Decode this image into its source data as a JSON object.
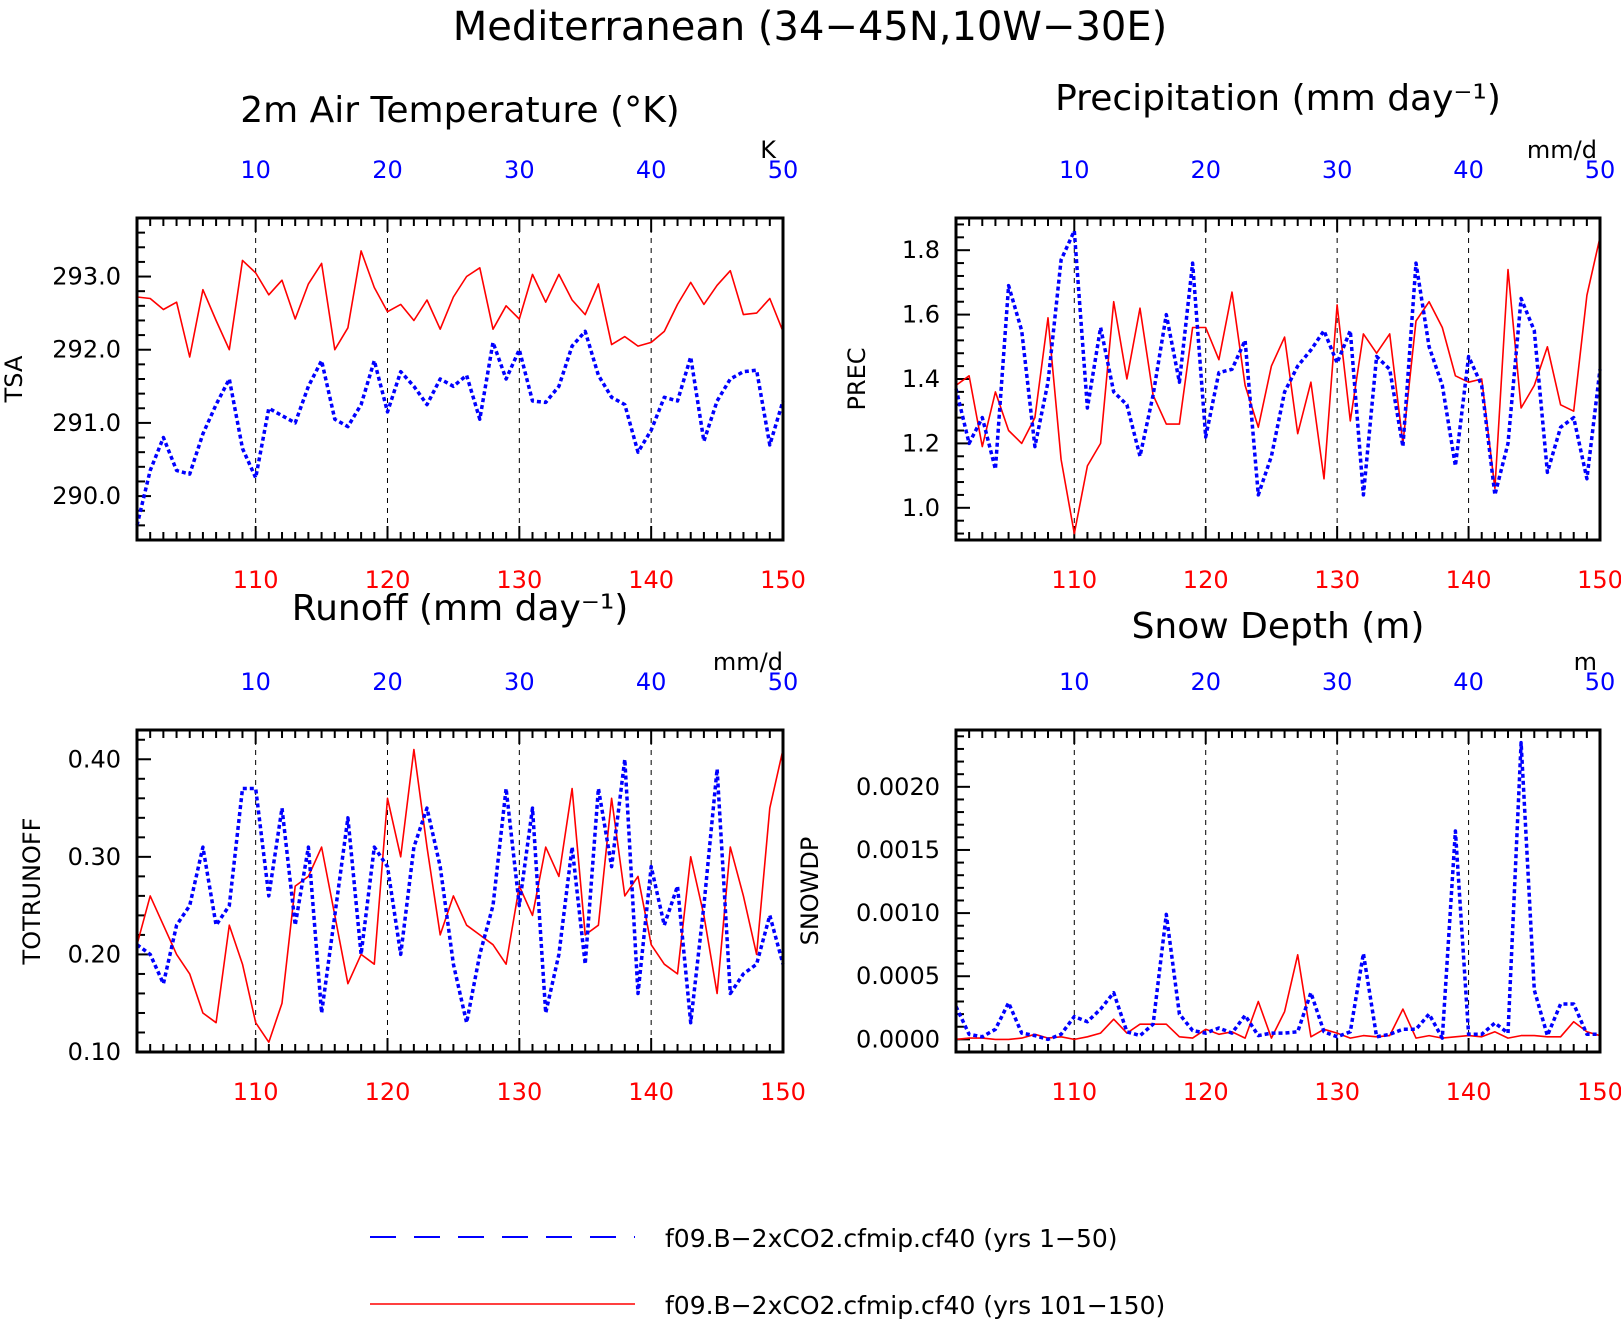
{
  "figure": {
    "title": "Mediterranean (34−45N,10W−30E)"
  },
  "legend": [
    {
      "label": "f09.B−2xCO2.cfmip.cf40 (yrs 1−50)",
      "color": "#0000ff",
      "style": "dashed"
    },
    {
      "label": "f09.B−2xCO2.cfmip.cf40 (yrs 101−150)",
      "color": "#ff0000",
      "style": "solid"
    }
  ],
  "colors": {
    "blue_series": "#0000ff",
    "red_series": "#ff0000",
    "top_axis_labels": "#0000ff",
    "bottom_axis_labels": "#ff0000"
  },
  "chart_data": [
    {
      "type": "line",
      "title": "2m Air Temperature (°K)",
      "ylabel": "TSA",
      "units": "K",
      "ylim": [
        289.4,
        293.8
      ],
      "yticks": [
        290.0,
        291.0,
        292.0,
        293.0
      ],
      "ytick_labels": [
        "290.0",
        "291.0",
        "292.0",
        "293.0"
      ],
      "bottom_xlim": [
        101,
        150
      ],
      "bottom_xticks": [
        110,
        120,
        130,
        140,
        150
      ],
      "top_xticks": [
        10,
        20,
        30,
        40,
        50
      ],
      "grid": "vertical dashed at decades",
      "series": [
        {
          "name": "f09.B−2xCO2.cfmip.cf40 (yrs 101−150)",
          "axis": "bottom",
          "color": "#ff0000",
          "style": "solid",
          "x": [
            101,
            102,
            103,
            104,
            105,
            106,
            107,
            108,
            109,
            110,
            111,
            112,
            113,
            114,
            115,
            116,
            117,
            118,
            119,
            120,
            121,
            122,
            123,
            124,
            125,
            126,
            127,
            128,
            129,
            130,
            131,
            132,
            133,
            134,
            135,
            136,
            137,
            138,
            139,
            140,
            141,
            142,
            143,
            144,
            145,
            146,
            147,
            148,
            149,
            150
          ],
          "values": [
            292.72,
            292.7,
            292.55,
            292.65,
            291.9,
            292.82,
            292.4,
            292.0,
            293.22,
            293.05,
            292.75,
            292.95,
            292.42,
            292.9,
            293.18,
            292.0,
            292.3,
            293.35,
            292.85,
            292.52,
            292.62,
            292.4,
            292.68,
            292.28,
            292.72,
            293.0,
            293.12,
            292.28,
            292.6,
            292.42,
            293.03,
            292.65,
            293.03,
            292.68,
            292.48,
            292.9,
            292.07,
            292.18,
            292.05,
            292.1,
            292.25,
            292.62,
            292.92,
            292.62,
            292.88,
            293.08,
            292.48,
            292.5,
            292.7,
            292.25
          ]
        },
        {
          "name": "f09.B−2xCO2.cfmip.cf40 (yrs 1−50)",
          "axis": "top",
          "color": "#0000ff",
          "style": "dashed",
          "x": [
            1,
            2,
            3,
            4,
            5,
            6,
            7,
            8,
            9,
            10,
            11,
            12,
            13,
            14,
            15,
            16,
            17,
            18,
            19,
            20,
            21,
            22,
            23,
            24,
            25,
            26,
            27,
            28,
            29,
            30,
            31,
            32,
            33,
            34,
            35,
            36,
            37,
            38,
            39,
            40,
            41,
            42,
            43,
            44,
            45,
            46,
            47,
            48,
            49,
            50
          ],
          "values": [
            289.6,
            290.35,
            290.8,
            290.35,
            290.3,
            290.85,
            291.25,
            291.6,
            290.65,
            290.25,
            291.2,
            291.1,
            291.0,
            291.5,
            291.85,
            291.05,
            290.95,
            291.25,
            291.85,
            291.15,
            291.7,
            291.5,
            291.25,
            291.6,
            291.5,
            291.65,
            291.05,
            292.1,
            291.6,
            292.0,
            291.3,
            291.28,
            291.5,
            292.05,
            292.25,
            291.65,
            291.35,
            291.25,
            290.6,
            290.9,
            291.35,
            291.3,
            291.9,
            290.75,
            291.3,
            291.6,
            291.7,
            291.72,
            290.7,
            291.3
          ]
        }
      ]
    },
    {
      "type": "line",
      "title": "Precipitation (mm day⁻¹)",
      "ylabel": "PREC",
      "units": "mm/d",
      "ylim": [
        0.9,
        1.9
      ],
      "yticks": [
        1.0,
        1.2,
        1.4,
        1.6,
        1.8
      ],
      "ytick_labels": [
        "1.0",
        "1.2",
        "1.4",
        "1.6",
        "1.8"
      ],
      "bottom_xlim": [
        101,
        150
      ],
      "bottom_xticks": [
        110,
        120,
        130,
        140,
        150
      ],
      "top_xticks": [
        10,
        20,
        30,
        40,
        50
      ],
      "grid": "vertical dashed at decades",
      "series": [
        {
          "name": "f09.B−2xCO2.cfmip.cf40 (yrs 101−150)",
          "axis": "bottom",
          "color": "#ff0000",
          "style": "solid",
          "x": [
            101,
            102,
            103,
            104,
            105,
            106,
            107,
            108,
            109,
            110,
            111,
            112,
            113,
            114,
            115,
            116,
            117,
            118,
            119,
            120,
            121,
            122,
            123,
            124,
            125,
            126,
            127,
            128,
            129,
            130,
            131,
            132,
            133,
            134,
            135,
            136,
            137,
            138,
            139,
            140,
            141,
            142,
            143,
            144,
            145,
            146,
            147,
            148,
            149,
            150
          ],
          "values": [
            1.38,
            1.41,
            1.19,
            1.36,
            1.24,
            1.2,
            1.28,
            1.59,
            1.15,
            0.92,
            1.13,
            1.2,
            1.64,
            1.4,
            1.62,
            1.35,
            1.26,
            1.26,
            1.56,
            1.56,
            1.46,
            1.67,
            1.38,
            1.25,
            1.44,
            1.53,
            1.23,
            1.39,
            1.09,
            1.63,
            1.27,
            1.54,
            1.48,
            1.54,
            1.2,
            1.58,
            1.64,
            1.56,
            1.41,
            1.39,
            1.4,
            1.06,
            1.74,
            1.31,
            1.38,
            1.5,
            1.32,
            1.3,
            1.66,
            1.84
          ]
        },
        {
          "name": "f09.B−2xCO2.cfmip.cf40 (yrs 1−50)",
          "axis": "top",
          "color": "#0000ff",
          "style": "dashed",
          "x": [
            1,
            2,
            3,
            4,
            5,
            6,
            7,
            8,
            9,
            10,
            11,
            12,
            13,
            14,
            15,
            16,
            17,
            18,
            19,
            20,
            21,
            22,
            23,
            24,
            25,
            26,
            27,
            28,
            29,
            30,
            31,
            32,
            33,
            34,
            35,
            36,
            37,
            38,
            39,
            40,
            41,
            42,
            43,
            44,
            45,
            46,
            47,
            48,
            49,
            50
          ],
          "values": [
            1.37,
            1.2,
            1.28,
            1.12,
            1.69,
            1.55,
            1.19,
            1.39,
            1.77,
            1.86,
            1.31,
            1.56,
            1.36,
            1.32,
            1.16,
            1.35,
            1.6,
            1.39,
            1.76,
            1.22,
            1.42,
            1.43,
            1.52,
            1.04,
            1.16,
            1.36,
            1.44,
            1.49,
            1.55,
            1.45,
            1.55,
            1.04,
            1.47,
            1.43,
            1.19,
            1.76,
            1.5,
            1.38,
            1.13,
            1.47,
            1.38,
            1.04,
            1.2,
            1.65,
            1.55,
            1.11,
            1.25,
            1.28,
            1.09,
            1.43
          ]
        }
      ]
    },
    {
      "type": "line",
      "title": "Runoff (mm day⁻¹)",
      "ylabel": "TOTRUNOFF",
      "units": "mm/d",
      "ylim": [
        0.1,
        0.43
      ],
      "yticks": [
        0.1,
        0.2,
        0.3,
        0.4
      ],
      "ytick_labels": [
        "0.10",
        "0.20",
        "0.30",
        "0.40"
      ],
      "bottom_xlim": [
        101,
        150
      ],
      "bottom_xticks": [
        110,
        120,
        130,
        140,
        150
      ],
      "top_xticks": [
        10,
        20,
        30,
        40,
        50
      ],
      "grid": "vertical dashed at decades",
      "series": [
        {
          "name": "f09.B−2xCO2.cfmip.cf40 (yrs 101−150)",
          "axis": "bottom",
          "color": "#ff0000",
          "style": "solid",
          "x": [
            101,
            102,
            103,
            104,
            105,
            106,
            107,
            108,
            109,
            110,
            111,
            112,
            113,
            114,
            115,
            116,
            117,
            118,
            119,
            120,
            121,
            122,
            123,
            124,
            125,
            126,
            127,
            128,
            129,
            130,
            131,
            132,
            133,
            134,
            135,
            136,
            137,
            138,
            139,
            140,
            141,
            142,
            143,
            144,
            145,
            146,
            147,
            148,
            149,
            150
          ],
          "values": [
            0.21,
            0.26,
            0.23,
            0.2,
            0.18,
            0.14,
            0.13,
            0.23,
            0.19,
            0.13,
            0.11,
            0.15,
            0.27,
            0.28,
            0.31,
            0.24,
            0.17,
            0.2,
            0.19,
            0.36,
            0.3,
            0.41,
            0.31,
            0.22,
            0.26,
            0.23,
            0.22,
            0.21,
            0.19,
            0.27,
            0.24,
            0.31,
            0.28,
            0.37,
            0.22,
            0.23,
            0.36,
            0.26,
            0.28,
            0.21,
            0.19,
            0.18,
            0.3,
            0.24,
            0.16,
            0.31,
            0.26,
            0.2,
            0.35,
            0.41
          ]
        },
        {
          "name": "f09.B−2xCO2.cfmip.cf40 (yrs 1−50)",
          "axis": "top",
          "color": "#0000ff",
          "style": "dashed",
          "x": [
            1,
            2,
            3,
            4,
            5,
            6,
            7,
            8,
            9,
            10,
            11,
            12,
            13,
            14,
            15,
            16,
            17,
            18,
            19,
            20,
            21,
            22,
            23,
            24,
            25,
            26,
            27,
            28,
            29,
            30,
            31,
            32,
            33,
            34,
            35,
            36,
            37,
            38,
            39,
            40,
            41,
            42,
            43,
            44,
            45,
            46,
            47,
            48,
            49,
            50
          ],
          "values": [
            0.21,
            0.2,
            0.17,
            0.23,
            0.25,
            0.31,
            0.23,
            0.25,
            0.37,
            0.37,
            0.26,
            0.35,
            0.23,
            0.31,
            0.14,
            0.24,
            0.34,
            0.2,
            0.31,
            0.29,
            0.2,
            0.31,
            0.35,
            0.29,
            0.19,
            0.13,
            0.2,
            0.25,
            0.37,
            0.25,
            0.35,
            0.14,
            0.2,
            0.31,
            0.19,
            0.37,
            0.29,
            0.4,
            0.16,
            0.29,
            0.23,
            0.27,
            0.13,
            0.25,
            0.39,
            0.16,
            0.18,
            0.19,
            0.24,
            0.19
          ]
        }
      ]
    },
    {
      "type": "line",
      "title": "Snow Depth (m)",
      "ylabel": "SNOWDP",
      "units": "m",
      "ylim": [
        -0.0001,
        0.00245
      ],
      "yticks": [
        0.0,
        0.0005,
        0.001,
        0.0015,
        0.002
      ],
      "ytick_labels": [
        "0.0000",
        "0.0005",
        "0.0010",
        "0.0015",
        "0.0020"
      ],
      "bottom_xlim": [
        101,
        150
      ],
      "bottom_xticks": [
        110,
        120,
        130,
        140,
        150
      ],
      "top_xticks": [
        10,
        20,
        30,
        40,
        50
      ],
      "grid": "vertical dashed at decades",
      "series": [
        {
          "name": "f09.B−2xCO2.cfmip.cf40 (yrs 101−150)",
          "axis": "bottom",
          "color": "#ff0000",
          "style": "solid",
          "x": [
            101,
            102,
            103,
            104,
            105,
            106,
            107,
            108,
            109,
            110,
            111,
            112,
            113,
            114,
            115,
            116,
            117,
            118,
            119,
            120,
            121,
            122,
            123,
            124,
            125,
            126,
            127,
            128,
            129,
            130,
            131,
            132,
            133,
            134,
            135,
            136,
            137,
            138,
            139,
            140,
            141,
            142,
            143,
            144,
            145,
            146,
            147,
            148,
            149,
            150
          ],
          "values": [
            0.0,
            1e-05,
            1e-05,
            0.0,
            0.0,
            1e-05,
            4e-05,
            1e-05,
            2e-05,
            0.0,
            2e-05,
            5e-05,
            0.00016,
            5e-05,
            0.00012,
            0.00012,
            0.00012,
            2e-05,
            1e-05,
            8e-05,
            4e-05,
            6e-05,
            1e-05,
            0.0003,
            1e-05,
            0.00022,
            0.00067,
            2e-05,
            8e-05,
            5e-05,
            1e-05,
            3e-05,
            2e-05,
            3e-05,
            0.00024,
            1e-05,
            3e-05,
            1e-05,
            2e-05,
            3e-05,
            2e-05,
            6e-05,
            1e-05,
            3e-05,
            3e-05,
            2e-05,
            2e-05,
            0.00014,
            6e-05,
            3e-05
          ]
        },
        {
          "name": "f09.B−2xCO2.cfmip.cf40 (yrs 1−50)",
          "axis": "top",
          "color": "#0000ff",
          "style": "dashed",
          "x": [
            1,
            2,
            3,
            4,
            5,
            6,
            7,
            8,
            9,
            10,
            11,
            12,
            13,
            14,
            15,
            16,
            17,
            18,
            19,
            20,
            21,
            22,
            23,
            24,
            25,
            26,
            27,
            28,
            29,
            30,
            31,
            32,
            33,
            34,
            35,
            36,
            37,
            38,
            39,
            40,
            41,
            42,
            43,
            44,
            45,
            46,
            47,
            48,
            49,
            50
          ],
          "values": [
            0.00026,
            4e-05,
            2e-05,
            8e-05,
            0.00029,
            5e-05,
            3e-05,
            0.0,
            4e-05,
            0.00018,
            0.00014,
            0.00024,
            0.00037,
            6e-05,
            3e-05,
            0.00012,
            0.00099,
            0.0002,
            7e-05,
            5e-05,
            9e-05,
            5e-05,
            0.00019,
            3e-05,
            5e-05,
            5e-05,
            6e-05,
            0.00037,
            6e-05,
            2e-05,
            6e-05,
            0.00068,
            2e-05,
            4e-05,
            8e-05,
            8e-05,
            0.0002,
            1e-05,
            0.00165,
            4e-05,
            4e-05,
            0.00013,
            5e-05,
            0.00235,
            0.00039,
            3e-05,
            0.00028,
            0.00028,
            4e-05,
            4e-05
          ]
        }
      ]
    }
  ]
}
